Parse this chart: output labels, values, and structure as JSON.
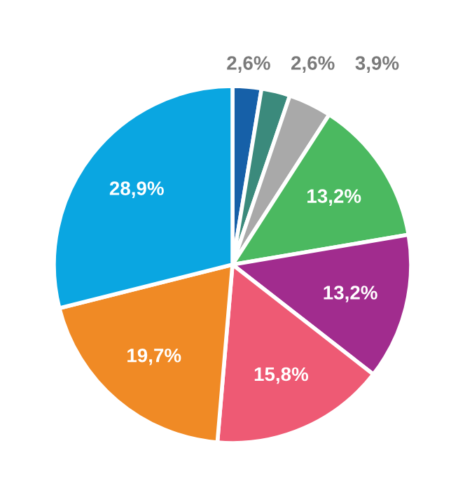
{
  "chart_data": {
    "type": "pie",
    "categories": [
      null,
      null,
      null,
      null,
      null,
      null,
      null,
      null
    ],
    "values": [
      2.6,
      2.6,
      3.9,
      13.2,
      13.2,
      15.8,
      19.7,
      28.9
    ],
    "value_labels": [
      "2,6%",
      "2,6%",
      "3,9%",
      "13,2%",
      "13,2%",
      "15,8%",
      "19,7%",
      "28,9%"
    ],
    "colors": [
      "#1660a8",
      "#3b8a7c",
      "#a9a9a9",
      "#4bb960",
      "#a12c8e",
      "#ee5a74",
      "#f08a25",
      "#0aa6e1"
    ]
  }
}
